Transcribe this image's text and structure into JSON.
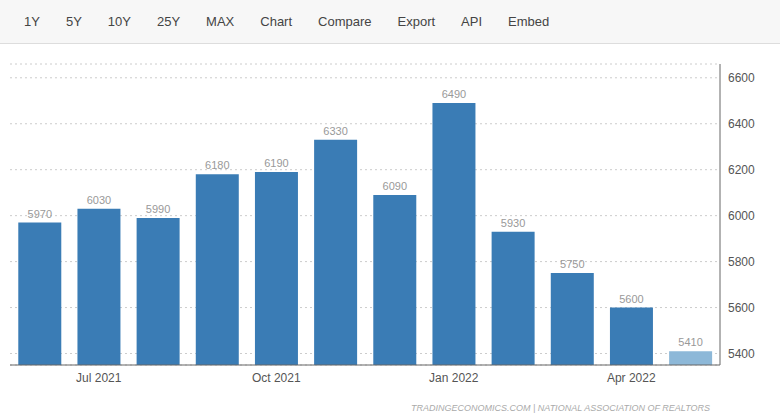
{
  "chart_data": {
    "type": "bar",
    "categories": [
      null,
      "Jul 2021",
      null,
      null,
      "Oct 2021",
      null,
      null,
      "Jan 2022",
      null,
      null,
      "Apr 2022",
      null
    ],
    "values": [
      5970,
      6030,
      5990,
      6180,
      6190,
      6330,
      6090,
      6490,
      5930,
      5750,
      5600,
      5410
    ],
    "colors": [
      "#3a7cb5",
      "#3a7cb5",
      "#3a7cb5",
      "#3a7cb5",
      "#3a7cb5",
      "#3a7cb5",
      "#3a7cb5",
      "#3a7cb5",
      "#3a7cb5",
      "#3a7cb5",
      "#3a7cb5",
      "#8db8d8"
    ],
    "ylim": [
      5350,
      6660
    ],
    "yticks": [
      5400,
      5600,
      5800,
      6000,
      6200,
      6400,
      6600
    ],
    "grid": true,
    "data_labels": true,
    "annotations": [
      "1Y",
      "5Y",
      "10Y",
      "25Y",
      "MAX",
      "Chart",
      "Compare",
      "Export",
      "API",
      "Embed",
      "TRADINGECONOMICS.COM | NATIONAL ASSOCIATION OF REALTORS"
    ]
  }
}
